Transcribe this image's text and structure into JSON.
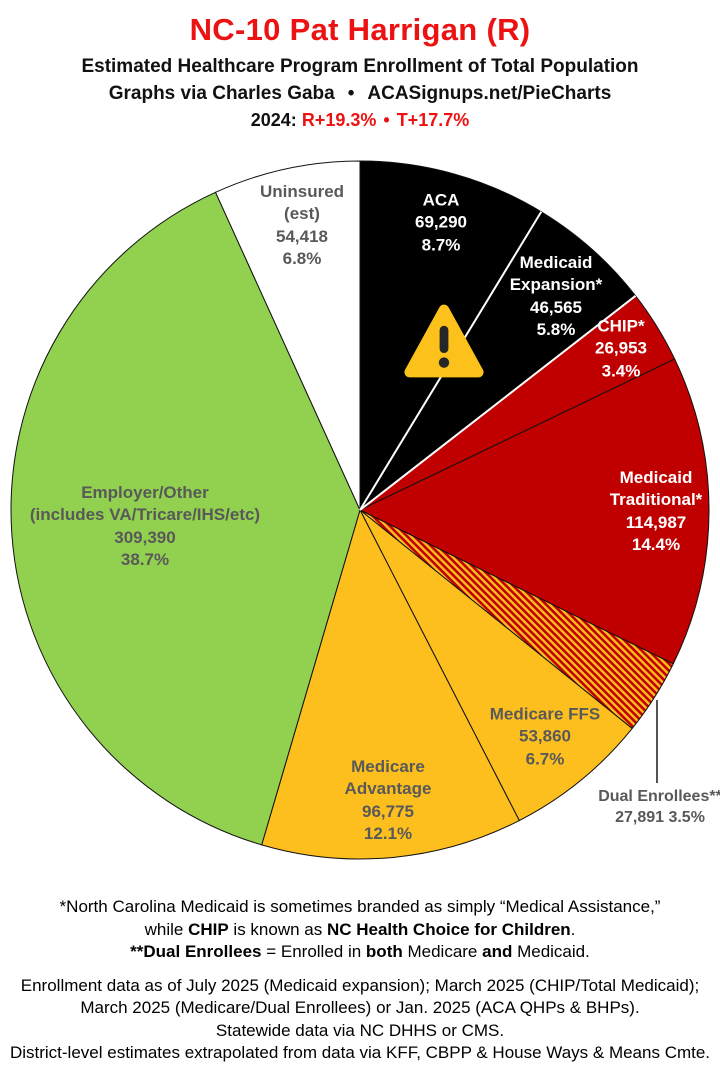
{
  "colors": {
    "accent_red": "#ed1212",
    "slice_black": "#000000",
    "slice_red": "#c00000",
    "slice_gold": "#fcbf1e",
    "slice_green": "#92d050",
    "slice_white": "#ffffff",
    "label_gray": "#595959",
    "hatch_red": "#c00000",
    "hatch_gold": "#fcbf1e"
  },
  "header": {
    "title": "NC-10 Pat Harrigan (R)",
    "subtitle": "Estimated Healthcare Program Enrollment of Total Population",
    "credit_left": "Graphs via Charles Gaba",
    "credit_bullet": "•",
    "credit_right": "ACASignups.net/PieCharts",
    "year_label": "2024:",
    "r_margin": "R+19.3%",
    "margin_bullet": "•",
    "t_margin": "T+17.7%"
  },
  "icons": {
    "warning": "warning-triangle-exclamation"
  },
  "chart_data": {
    "type": "pie",
    "title": "NC-10 Pat Harrigan (R) — Estimated Healthcare Program Enrollment of Total Population",
    "start_angle_deg": 0,
    "direction": "clockwise",
    "legend_position": "labels-on-slices",
    "slices": [
      {
        "id": "aca",
        "label": "ACA",
        "value": 69290,
        "value_display": "69,290",
        "pct": 8.7,
        "pct_display": "8.7%",
        "color": "#000000",
        "text_color": "#ffffff",
        "divider_after": "#ffffff",
        "label_lines": [
          "ACA",
          "69,290",
          "8.7%"
        ]
      },
      {
        "id": "medicaid-expansion",
        "label": "Medicaid Expansion*",
        "value": 46565,
        "value_display": "46,565",
        "pct": 5.8,
        "pct_display": "5.8%",
        "color": "#000000",
        "text_color": "#ffffff",
        "divider_after": "#ffffff",
        "label_lines": [
          "Medicaid",
          "Expansion*",
          "46,565",
          "5.8%"
        ]
      },
      {
        "id": "chip",
        "label": "CHIP*",
        "value": 26953,
        "value_display": "26,953",
        "pct": 3.4,
        "pct_display": "3.4%",
        "color": "#c00000",
        "text_color": "#ffffff",
        "label_lines": [
          "CHIP*",
          "26,953",
          "3.4%"
        ]
      },
      {
        "id": "medicaid-traditional",
        "label": "Medicaid Traditional*",
        "value": 114987,
        "value_display": "114,987",
        "pct": 14.4,
        "pct_display": "14.4%",
        "color": "#c00000",
        "text_color": "#ffffff",
        "label_lines": [
          "Medicaid",
          "Traditional*",
          "114,987",
          "14.4%"
        ]
      },
      {
        "id": "dual-enrollees",
        "label": "Dual Enrollees**",
        "value": 27891,
        "value_display": "27,891",
        "pct": 3.5,
        "pct_display": "3.5%",
        "color": "hatch",
        "text_color": "#595959",
        "label_lines": [
          "Dual Enrollees**",
          "27,891 3.5%"
        ]
      },
      {
        "id": "medicare-ffs",
        "label": "Medicare FFS",
        "value": 53860,
        "value_display": "53,860",
        "pct": 6.7,
        "pct_display": "6.7%",
        "color": "#fcbf1e",
        "text_color": "#595959",
        "label_lines": [
          "Medicare FFS",
          "53,860",
          "6.7%"
        ]
      },
      {
        "id": "medicare-advantage",
        "label": "Medicare Advantage",
        "value": 96775,
        "value_display": "96,775",
        "pct": 12.1,
        "pct_display": "12.1%",
        "color": "#fcbf1e",
        "text_color": "#595959",
        "label_lines": [
          "Medicare",
          "Advantage",
          "96,775",
          "12.1%"
        ]
      },
      {
        "id": "employer-other",
        "label": "Employer/Other (includes VA/Tricare/IHS/etc)",
        "value": 309390,
        "value_display": "309,390",
        "pct": 38.7,
        "pct_display": "38.7%",
        "color": "#92d050",
        "text_color": "#595959",
        "label_lines": [
          "Employer/Other",
          "(includes VA/Tricare/IHS/etc)",
          "309,390",
          "38.7%"
        ]
      },
      {
        "id": "uninsured",
        "label": "Uninsured (est)",
        "value": 54418,
        "value_display": "54,418",
        "pct": 6.8,
        "pct_display": "6.8%",
        "color": "#ffffff",
        "text_color": "#595959",
        "label_lines": [
          "Uninsured",
          "(est)",
          "54,418",
          "6.8%"
        ]
      }
    ]
  },
  "footnotes": {
    "block1": [
      [
        {
          "t": "*North Carolina Medicaid is sometimes branded as simply “Medical Assistance,”"
        }
      ],
      [
        {
          "t": "while "
        },
        {
          "t": "CHIP",
          "b": true
        },
        {
          "t": " is known as "
        },
        {
          "t": "NC Health Choice for Children",
          "b": true
        },
        {
          "t": "."
        }
      ],
      [
        {
          "t": "**Dual Enrollees",
          "b": true
        },
        {
          "t": " = Enrolled in "
        },
        {
          "t": "both",
          "b": true
        },
        {
          "t": " Medicare "
        },
        {
          "t": "and",
          "b": true
        },
        {
          "t": " Medicaid."
        }
      ]
    ],
    "block2": [
      "Enrollment data as of July 2025 (Medicaid expansion); March 2025 (CHIP/Total Medicaid);",
      "March 2025 (Medicare/Dual Enrollees) or Jan. 2025 (ACA QHPs & BHPs).",
      "Statewide data via NC DHHS or CMS.",
      "District-level estimates extrapolated from data via KFF, CBPP & House Ways & Means Cmte."
    ]
  }
}
